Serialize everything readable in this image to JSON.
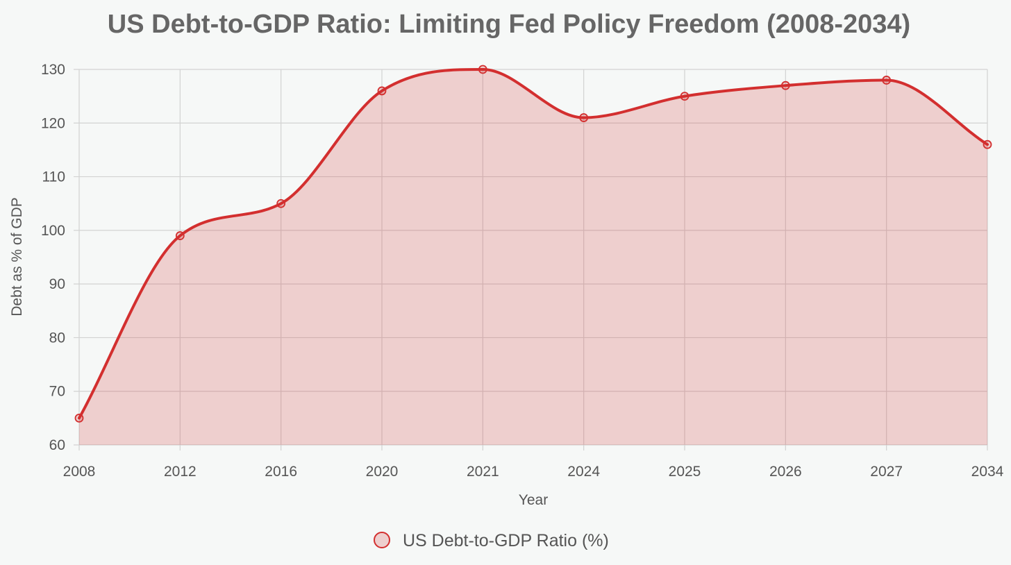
{
  "chart_data": {
    "type": "area",
    "title": "US Debt-to-GDP Ratio: Limiting Fed Policy Freedom (2008-2034)",
    "xlabel": "Year",
    "ylabel": "Debt as % of GDP",
    "categories": [
      "2008",
      "2012",
      "2016",
      "2020",
      "2021",
      "2024",
      "2025",
      "2026",
      "2027",
      "2034"
    ],
    "series": [
      {
        "name": "US Debt-to-GDP Ratio (%)",
        "values": [
          65,
          99,
          105,
          126,
          130,
          121,
          125,
          127,
          128,
          116
        ]
      }
    ],
    "ylim": [
      60,
      130
    ],
    "yticks": [
      60,
      70,
      80,
      90,
      100,
      110,
      120,
      130
    ],
    "grid": true,
    "legend_position": "bottom",
    "colors": {
      "line": "#d32f2f",
      "fill": "rgba(211,47,47,0.2)",
      "grid": "#d2d2d2"
    }
  }
}
